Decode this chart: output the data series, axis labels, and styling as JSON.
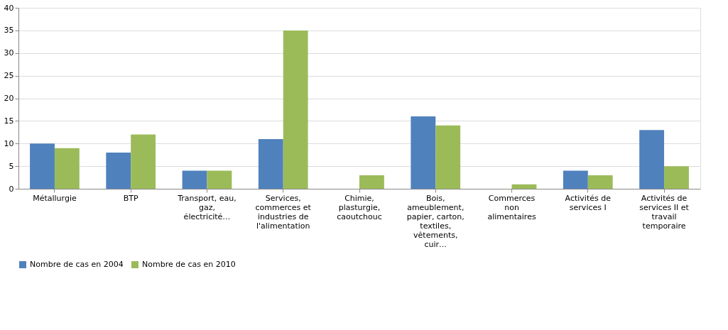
{
  "chart_data": {
    "type": "bar",
    "categories": [
      "Métallurgie",
      "BTP",
      "Transport, eau,\ngaz,\nélectricité…",
      "Services,\ncommerces et\nindustries de\nl'alimentation",
      "Chimie,\nplasturgie,\ncaoutchouc",
      "Bois,\nameublement,\npapier, carton,\ntextiles,\nvêtements,\ncuir…",
      "Commerces\nnon\nalimentaires",
      "Activités de\nservices I",
      "Activités de\nservices II et\ntravail\ntemporaire"
    ],
    "series": [
      {
        "name": "Nombre de cas en 2004",
        "color": "#4f81bd",
        "values": [
          10,
          8,
          4,
          11,
          0,
          16,
          0,
          4,
          13
        ]
      },
      {
        "name": "Nombre de cas en 2010",
        "color": "#9bbb59",
        "values": [
          9,
          12,
          4,
          35,
          3,
          14,
          1,
          3,
          5
        ]
      }
    ],
    "ylim": [
      0,
      40
    ],
    "yticks": [
      0,
      5,
      10,
      15,
      20,
      25,
      30,
      35,
      40
    ],
    "grid": "y",
    "legend": "bottom"
  }
}
